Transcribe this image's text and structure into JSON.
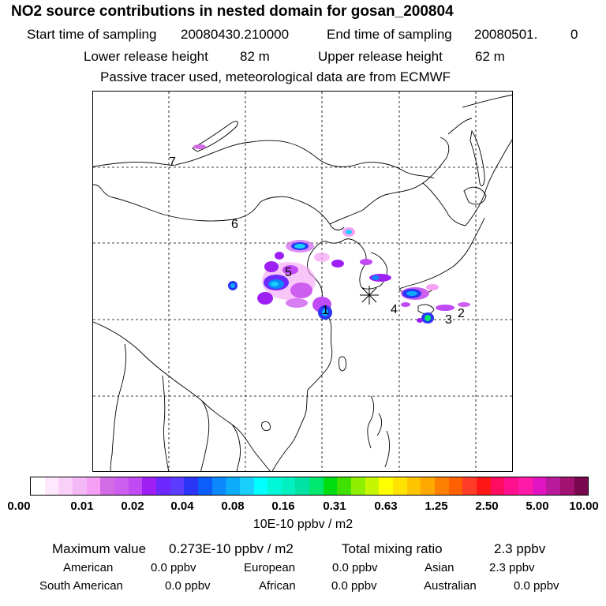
{
  "header": {
    "title": "NO2 source contributions in nested domain for gosan_200804",
    "start_label": "Start time of sampling",
    "start_value": "20080430.210000",
    "end_label": "End time of sampling",
    "end_value": "20080501.",
    "end_value_2": "0",
    "lower_label": "Lower release height",
    "lower_value": "82 m",
    "upper_label": "Upper release height",
    "upper_value": "62 m",
    "note": "Passive tracer used, meteorological data are from ECMWF"
  },
  "map": {
    "region_labels": [
      "1",
      "2",
      "3",
      "4",
      "5",
      "6",
      "7"
    ],
    "receptor_marker": "asterisk"
  },
  "colorbar": {
    "colors": [
      "#ffffff",
      "#fde8fd",
      "#f9d0f9",
      "#f4b8f6",
      "#f5a0f5",
      "#d36be7",
      "#ce5ef0",
      "#c04bf5",
      "#9d1ff3",
      "#6c28ff",
      "#5c3cfe",
      "#2a35f6",
      "#0b5efa",
      "#0b88fb",
      "#0cacfb",
      "#1ad0fb",
      "#00ffff",
      "#00f7d8",
      "#00f0c0",
      "#00e2a4",
      "#00e870",
      "#00dc10",
      "#40e000",
      "#90ee00",
      "#c6f600",
      "#ffff00",
      "#ffe200",
      "#ffc400",
      "#ffa800",
      "#ff8000",
      "#ff6000",
      "#ff3c28",
      "#ff1616",
      "#ff0c60",
      "#ff108e",
      "#ff1aa8",
      "#e214c2",
      "#b81a9a",
      "#a21270",
      "#7a084e"
    ],
    "tick_labels": [
      "0.00",
      "0.01",
      "0.02",
      "0.04",
      "0.08",
      "0.16",
      "0.31",
      "0.63",
      "1.25",
      "2.50",
      "5.00",
      "10.00"
    ],
    "unit": "10E-10 ppbv / m2"
  },
  "stats": {
    "max_label": "Maximum value",
    "max_value": "0.273E-10 ppbv / m2",
    "total_label": "Total mixing ratio",
    "total_value": "2.3 ppbv",
    "regions": [
      {
        "name": "American",
        "value": "0.0 ppbv"
      },
      {
        "name": "European",
        "value": "0.0 ppbv"
      },
      {
        "name": "Asian",
        "value": "2.3 ppbv"
      },
      {
        "name": "South American",
        "value": "0.0 ppbv"
      },
      {
        "name": "African",
        "value": "0.0 ppbv"
      },
      {
        "name": "Australian",
        "value": "0.0 ppbv"
      }
    ]
  }
}
